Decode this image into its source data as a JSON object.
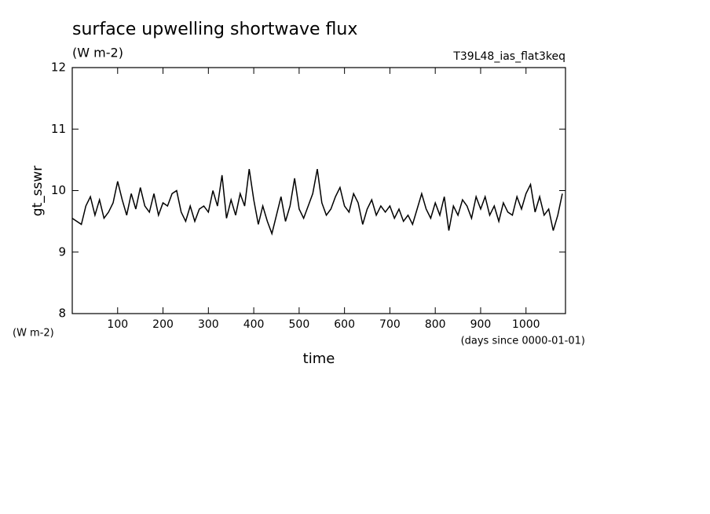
{
  "chart_data": {
    "type": "line",
    "title": "surface upwelling shortwave flux",
    "units": "(W m-2)",
    "run_label": "T39L48_ias_flat3keq",
    "ylabel": "gt_sswr",
    "xlabel": "time",
    "x_units": "(days since 0000-01-01)",
    "xlim": [
      0,
      1087
    ],
    "ylim": [
      8,
      12
    ],
    "xticks": [
      100,
      200,
      300,
      400,
      500,
      600,
      700,
      800,
      900,
      1000
    ],
    "yticks": [
      8,
      9,
      10,
      11,
      12
    ],
    "x": [
      0,
      10,
      20,
      30,
      40,
      50,
      60,
      70,
      80,
      90,
      100,
      110,
      120,
      130,
      140,
      150,
      160,
      170,
      180,
      190,
      200,
      210,
      220,
      230,
      240,
      250,
      260,
      270,
      280,
      290,
      300,
      310,
      320,
      330,
      340,
      350,
      360,
      370,
      380,
      390,
      400,
      410,
      420,
      430,
      440,
      450,
      460,
      470,
      480,
      490,
      500,
      510,
      520,
      530,
      540,
      550,
      560,
      570,
      580,
      590,
      600,
      610,
      620,
      630,
      640,
      650,
      660,
      670,
      680,
      690,
      700,
      710,
      720,
      730,
      740,
      750,
      760,
      770,
      780,
      790,
      800,
      810,
      820,
      830,
      840,
      850,
      860,
      870,
      880,
      890,
      900,
      910,
      920,
      930,
      940,
      950,
      960,
      970,
      980,
      990,
      1000,
      1010,
      1020,
      1030,
      1040,
      1050,
      1060,
      1070,
      1080
    ],
    "series": [
      {
        "color": "#000000",
        "values": [
          9.55,
          9.5,
          9.45,
          9.75,
          9.9,
          9.6,
          9.85,
          9.55,
          9.65,
          9.8,
          10.15,
          9.85,
          9.6,
          9.95,
          9.7,
          10.05,
          9.75,
          9.65,
          9.95,
          9.6,
          9.8,
          9.75,
          9.95,
          10.0,
          9.65,
          9.5,
          9.75,
          9.5,
          9.7,
          9.75,
          9.65,
          10.0,
          9.75,
          10.25,
          9.55,
          9.85,
          9.6,
          9.95,
          9.75,
          10.35,
          9.85,
          9.45,
          9.75,
          9.5,
          9.3,
          9.6,
          9.9,
          9.5,
          9.75,
          10.2,
          9.7,
          9.55,
          9.75,
          9.95,
          10.35,
          9.8,
          9.6,
          9.7,
          9.9,
          10.05,
          9.75,
          9.65,
          9.95,
          9.8,
          9.45,
          9.7,
          9.85,
          9.6,
          9.75,
          9.65,
          9.75,
          9.55,
          9.7,
          9.5,
          9.6,
          9.45,
          9.7,
          9.95,
          9.7,
          9.55,
          9.8,
          9.6,
          9.9,
          9.35,
          9.75,
          9.6,
          9.85,
          9.75,
          9.55,
          9.9,
          9.7,
          9.9,
          9.6,
          9.75,
          9.5,
          9.8,
          9.65,
          9.6,
          9.9,
          9.7,
          9.95,
          10.1,
          9.65,
          9.9,
          9.6,
          9.7,
          9.35,
          9.6,
          9.95
        ]
      }
    ]
  }
}
